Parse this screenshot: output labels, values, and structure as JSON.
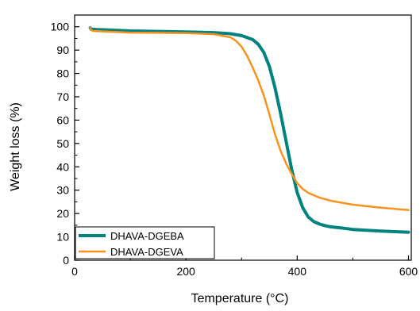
{
  "chart_data": {
    "type": "line",
    "title": "",
    "xlabel": "Temperature (°C)",
    "ylabel": "Weight loss (%)",
    "xlim": [
      0,
      605
    ],
    "ylim": [
      0,
      105
    ],
    "x_ticks": [
      0,
      200,
      400,
      600
    ],
    "y_ticks": [
      0,
      10,
      20,
      30,
      40,
      50,
      60,
      70,
      80,
      90,
      100
    ],
    "x_minor_tick_step": 100,
    "y_minor_tick_step": 5,
    "grid": false,
    "legend_position": "bottom-left",
    "colors": {
      "axis": "#000000",
      "DHAVA-DGEBA": "#00827f",
      "DHAVA-DGEVA": "#f7931e"
    },
    "series": [
      {
        "name": "DHAVA-DGEBA",
        "x": [
          28,
          30,
          33,
          60,
          100,
          150,
          200,
          250,
          280,
          300,
          320,
          330,
          340,
          350,
          360,
          370,
          380,
          390,
          400,
          410,
          420,
          430,
          440,
          450,
          460,
          480,
          500,
          550,
          600
        ],
        "y": [
          99.5,
          98.9,
          98.9,
          98.6,
          98.2,
          98.0,
          97.8,
          97.5,
          97.0,
          96.2,
          94.5,
          92.5,
          89.0,
          83.0,
          74.0,
          63.0,
          51.0,
          39.0,
          29.0,
          22.5,
          18.5,
          16.5,
          15.5,
          14.8,
          14.3,
          13.8,
          13.2,
          12.5,
          12.0
        ]
      },
      {
        "name": "DHAVA-DGEVA",
        "x": [
          28,
          30,
          33,
          60,
          100,
          150,
          200,
          250,
          280,
          290,
          300,
          310,
          320,
          330,
          340,
          350,
          360,
          370,
          380,
          390,
          400,
          410,
          420,
          440,
          460,
          500,
          550,
          600
        ],
        "y": [
          99.5,
          98.5,
          98.2,
          97.9,
          97.5,
          97.4,
          97.3,
          96.8,
          95.5,
          94.0,
          91.5,
          87.5,
          82.5,
          77.0,
          70.5,
          62.5,
          54.0,
          47.0,
          41.5,
          37.0,
          33.0,
          30.5,
          28.8,
          26.8,
          25.5,
          23.8,
          22.5,
          21.5
        ]
      }
    ]
  }
}
